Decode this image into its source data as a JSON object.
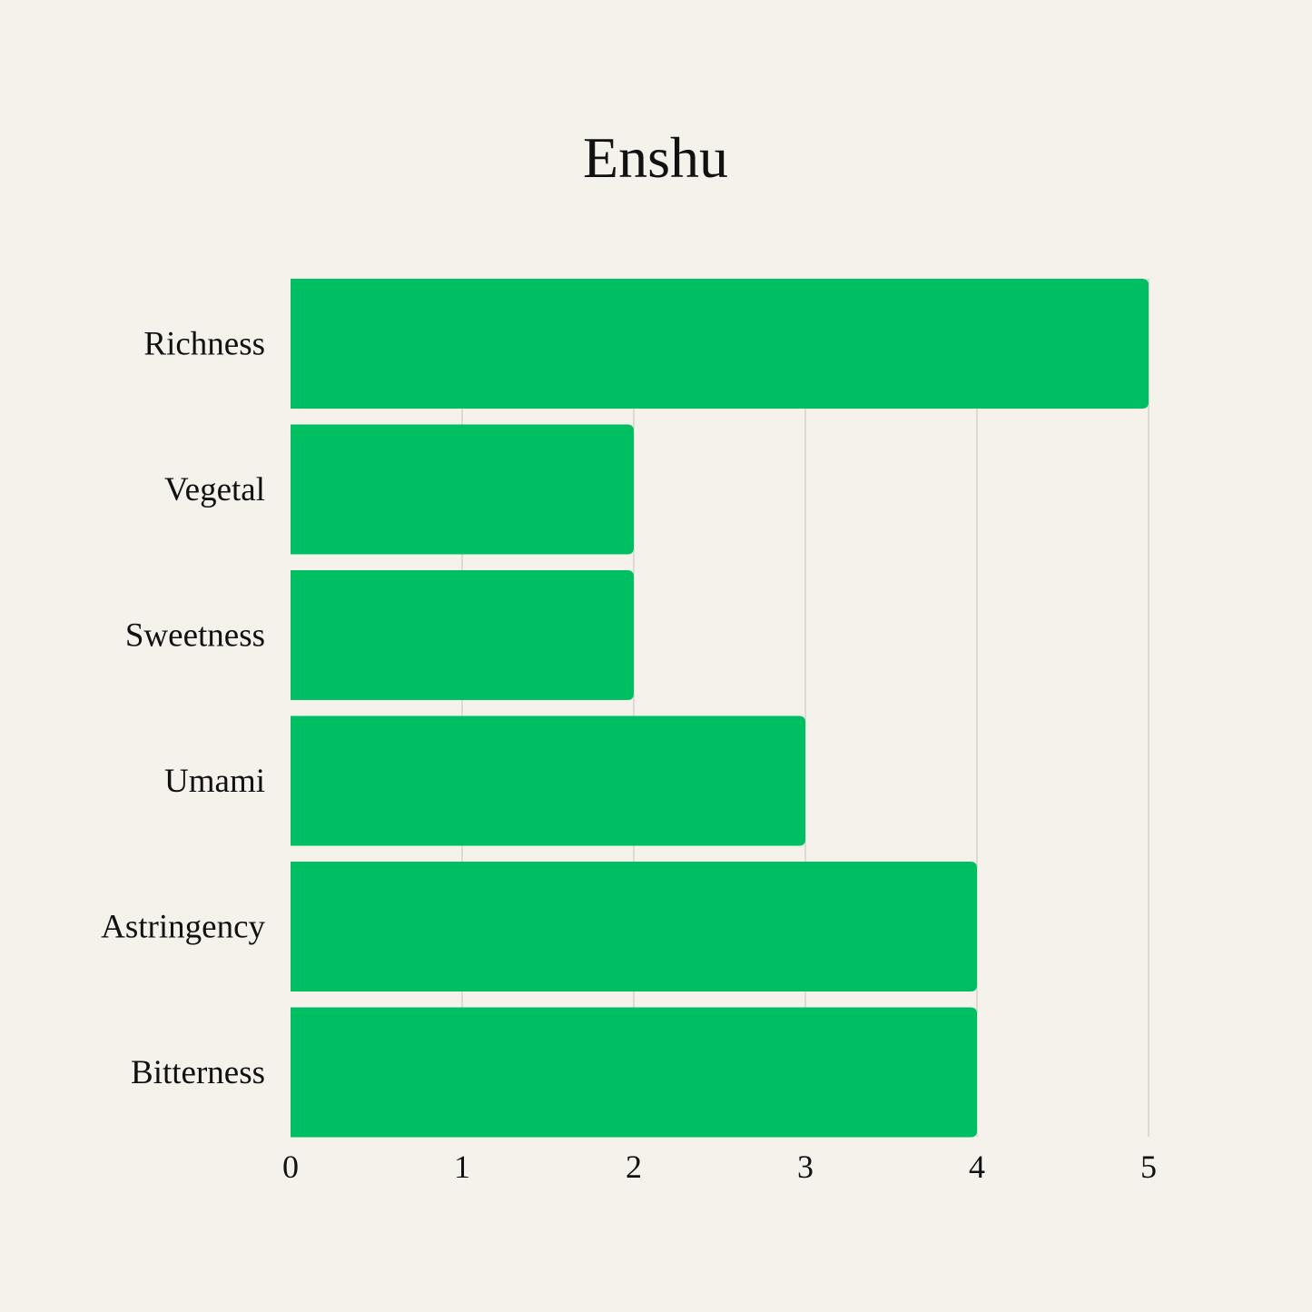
{
  "chart_data": {
    "type": "bar",
    "orientation": "horizontal",
    "title": "Enshu",
    "categories": [
      "Richness",
      "Vegetal",
      "Sweetness",
      "Umami",
      "Astringency",
      "Bitterness"
    ],
    "values": [
      5,
      2,
      2,
      3,
      4,
      4
    ],
    "xlim": [
      0,
      5
    ],
    "xticks": [
      "0",
      "1",
      "2",
      "3",
      "4",
      "5"
    ],
    "grid": true,
    "bar_color": "#00bf63",
    "grid_color": "#cfcac3",
    "background": "#f5f1eb"
  }
}
